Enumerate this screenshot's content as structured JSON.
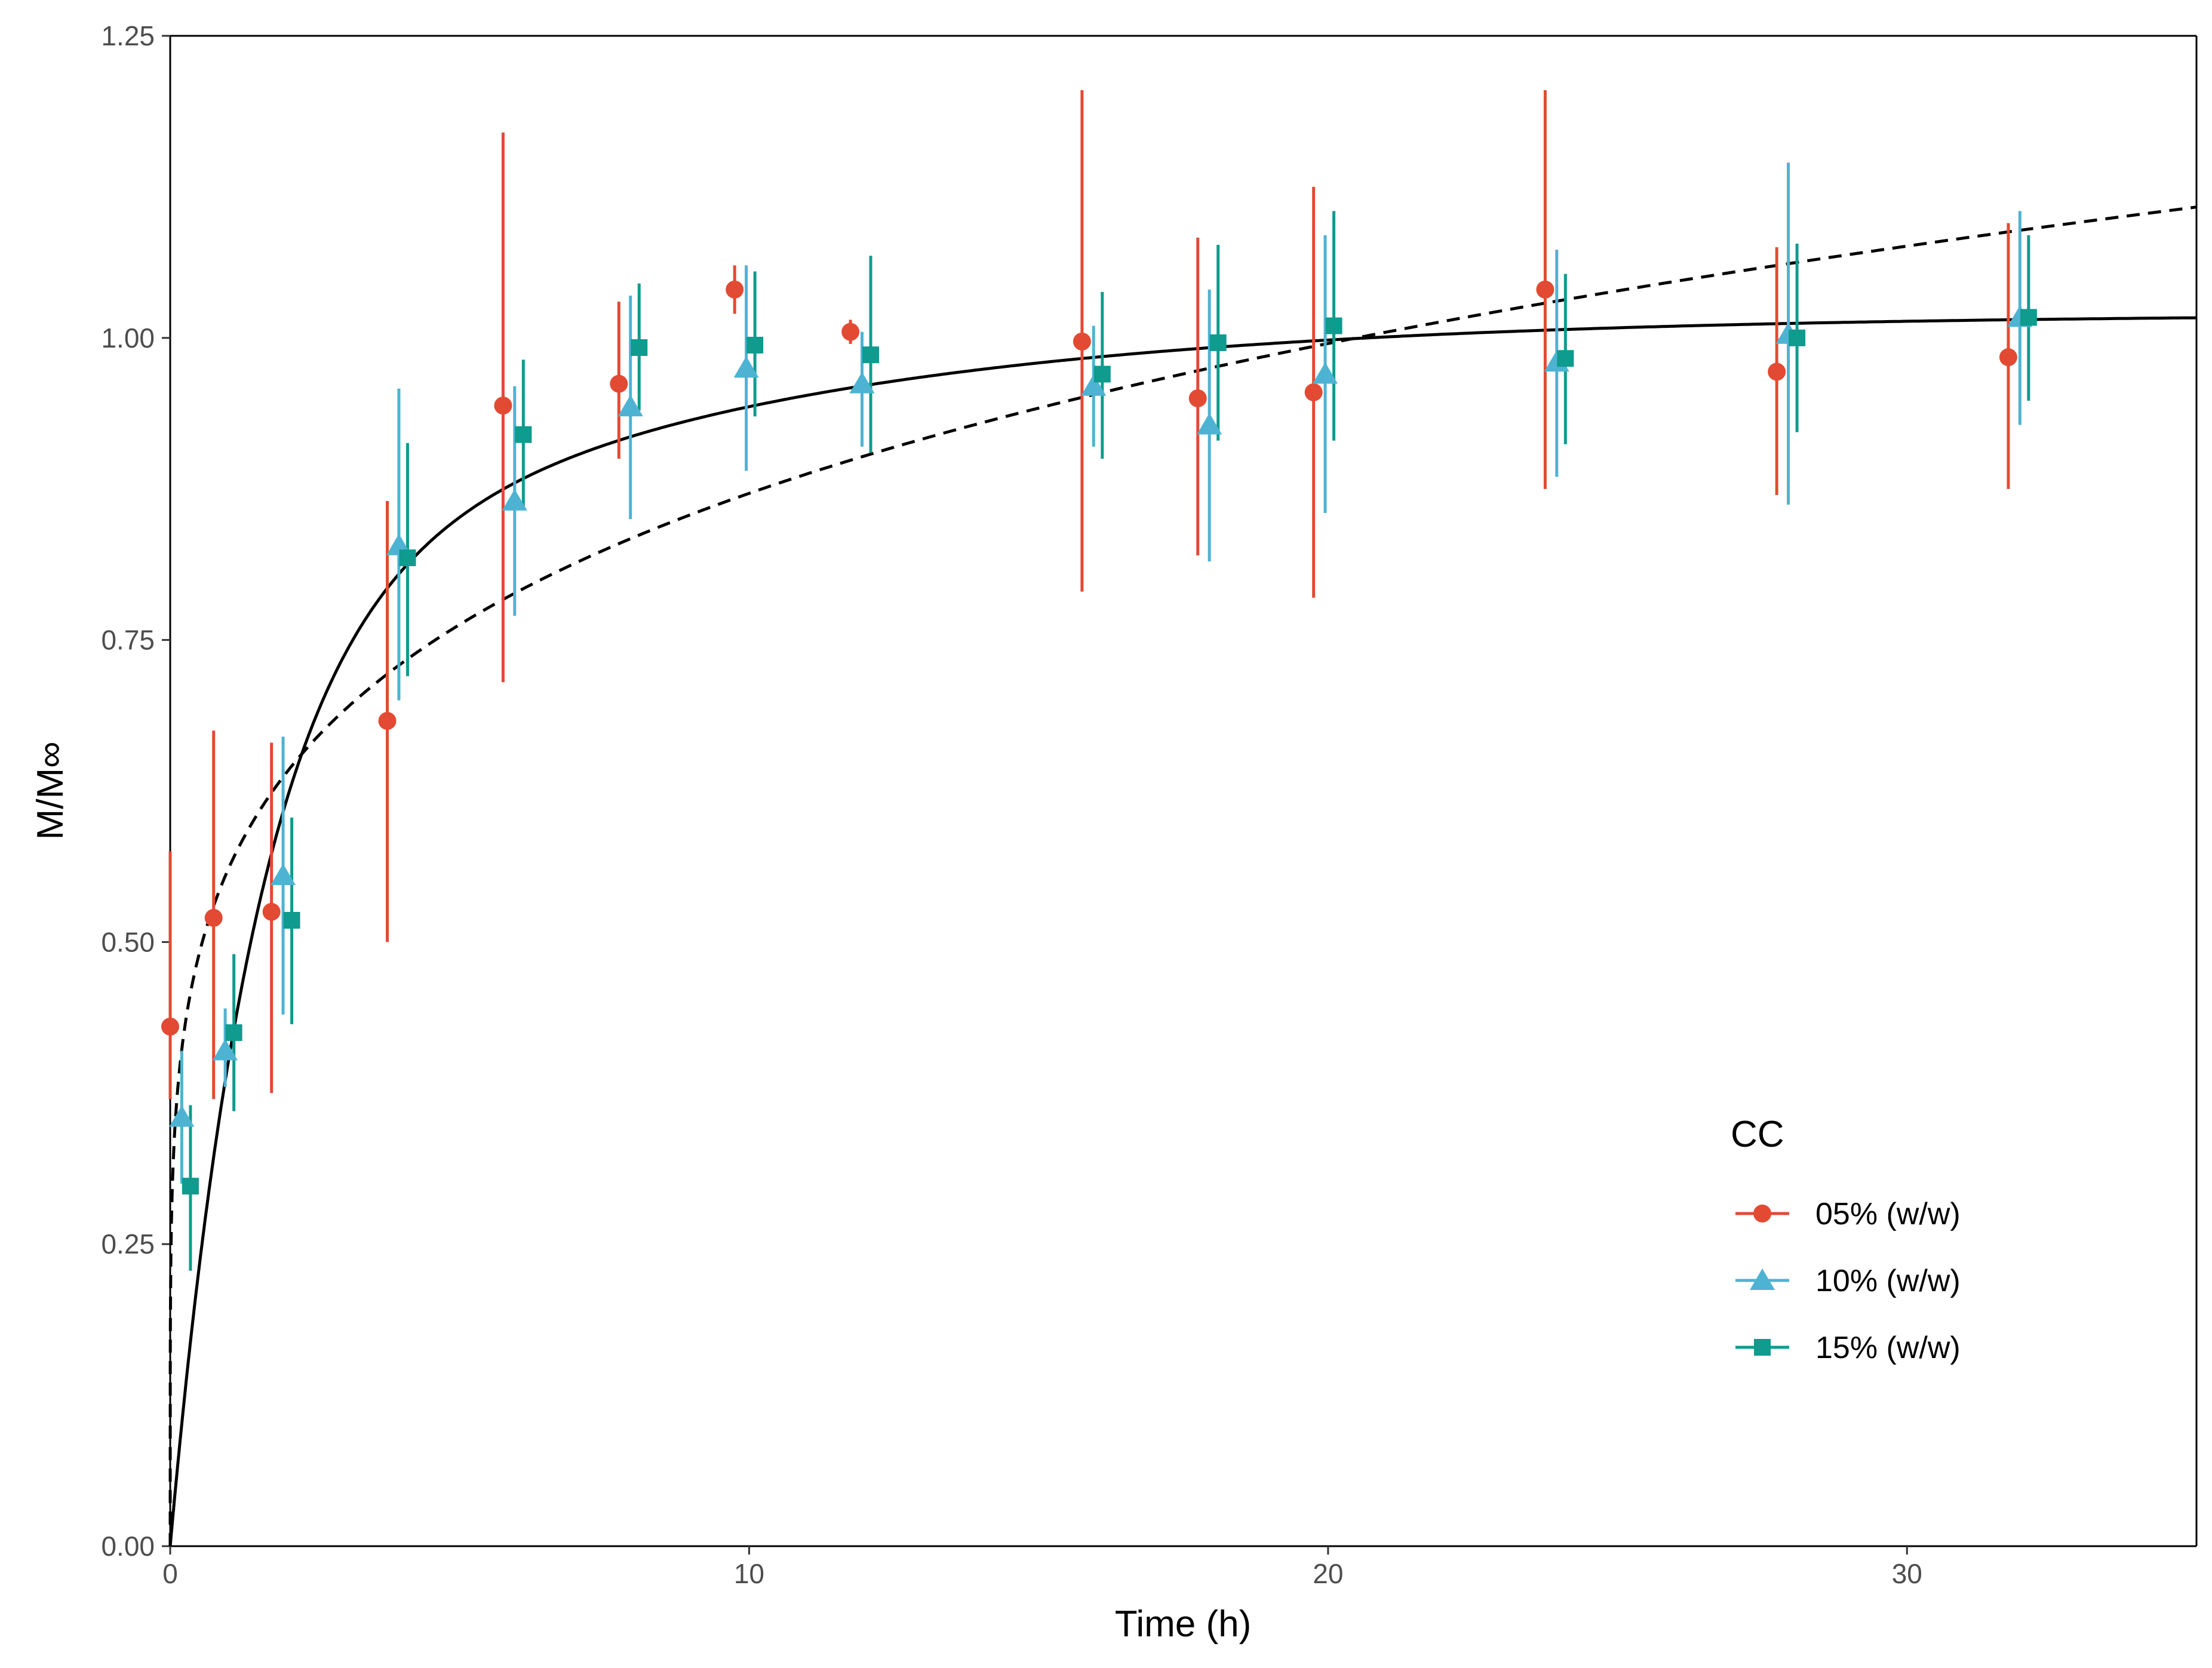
{
  "chart_data": {
    "type": "scatter",
    "xlabel": "Time (h)",
    "ylabel": "M/M∞",
    "xlim": [
      0,
      35
    ],
    "ylim": [
      0,
      1.25
    ],
    "xticks": [
      0,
      10,
      20,
      30
    ],
    "yticks": [
      0.0,
      0.25,
      0.5,
      0.75,
      1.0,
      1.25
    ],
    "xtick_labels": [
      "0",
      "10",
      "20",
      "30"
    ],
    "ytick_labels": [
      "0.00",
      "0.25",
      "0.50",
      "0.75",
      "1.00",
      "1.25"
    ],
    "grid": false,
    "legend": {
      "title": "CC",
      "position": "bottom-right"
    },
    "series": [
      {
        "name": "05% (w/w)",
        "color": "#E24A33",
        "marker": "circle",
        "x_offset": -0.25,
        "points": [
          {
            "x": 0.25,
            "y": 0.43,
            "lo": 0.37,
            "hi": 0.575
          },
          {
            "x": 1,
            "y": 0.52,
            "lo": 0.37,
            "hi": 0.675
          },
          {
            "x": 2,
            "y": 0.525,
            "lo": 0.375,
            "hi": 0.665
          },
          {
            "x": 4,
            "y": 0.683,
            "lo": 0.5,
            "hi": 0.865
          },
          {
            "x": 6,
            "y": 0.944,
            "lo": 0.715,
            "hi": 1.17
          },
          {
            "x": 8,
            "y": 0.962,
            "lo": 0.9,
            "hi": 1.03
          },
          {
            "x": 10,
            "y": 1.04,
            "lo": 1.02,
            "hi": 1.06
          },
          {
            "x": 12,
            "y": 1.005,
            "lo": 0.995,
            "hi": 1.015
          },
          {
            "x": 16,
            "y": 0.997,
            "lo": 0.79,
            "hi": 1.205
          },
          {
            "x": 18,
            "y": 0.95,
            "lo": 0.82,
            "hi": 1.083
          },
          {
            "x": 20,
            "y": 0.955,
            "lo": 0.785,
            "hi": 1.125
          },
          {
            "x": 24,
            "y": 1.04,
            "lo": 0.875,
            "hi": 1.205
          },
          {
            "x": 28,
            "y": 0.972,
            "lo": 0.87,
            "hi": 1.075
          },
          {
            "x": 32,
            "y": 0.984,
            "lo": 0.875,
            "hi": 1.095
          }
        ]
      },
      {
        "name": "10% (w/w)",
        "color": "#4EB3D3",
        "marker": "triangle",
        "x_offset": -0.05,
        "points": [
          {
            "x": 0.25,
            "y": 0.355,
            "lo": 0.3,
            "hi": 0.41
          },
          {
            "x": 1,
            "y": 0.41,
            "lo": 0.38,
            "hi": 0.445
          },
          {
            "x": 2,
            "y": 0.555,
            "lo": 0.44,
            "hi": 0.67
          },
          {
            "x": 4,
            "y": 0.828,
            "lo": 0.7,
            "hi": 0.958
          },
          {
            "x": 6,
            "y": 0.865,
            "lo": 0.77,
            "hi": 0.96
          },
          {
            "x": 8,
            "y": 0.943,
            "lo": 0.85,
            "hi": 1.035
          },
          {
            "x": 10,
            "y": 0.975,
            "lo": 0.89,
            "hi": 1.06
          },
          {
            "x": 12,
            "y": 0.962,
            "lo": 0.91,
            "hi": 1.005
          },
          {
            "x": 16,
            "y": 0.96,
            "lo": 0.91,
            "hi": 1.01
          },
          {
            "x": 18,
            "y": 0.928,
            "lo": 0.815,
            "hi": 1.04
          },
          {
            "x": 20,
            "y": 0.97,
            "lo": 0.855,
            "hi": 1.085
          },
          {
            "x": 24,
            "y": 0.98,
            "lo": 0.885,
            "hi": 1.073
          },
          {
            "x": 28,
            "y": 1.003,
            "lo": 0.862,
            "hi": 1.145
          },
          {
            "x": 32,
            "y": 1.017,
            "lo": 0.928,
            "hi": 1.105
          }
        ]
      },
      {
        "name": "15% (w/w)",
        "color": "#0F9B8E",
        "marker": "square",
        "x_offset": 0.1,
        "points": [
          {
            "x": 0.25,
            "y": 0.298,
            "lo": 0.228,
            "hi": 0.365
          },
          {
            "x": 1,
            "y": 0.425,
            "lo": 0.36,
            "hi": 0.49
          },
          {
            "x": 2,
            "y": 0.518,
            "lo": 0.432,
            "hi": 0.603
          },
          {
            "x": 4,
            "y": 0.818,
            "lo": 0.72,
            "hi": 0.913
          },
          {
            "x": 6,
            "y": 0.92,
            "lo": 0.86,
            "hi": 0.982
          },
          {
            "x": 8,
            "y": 0.992,
            "lo": 0.94,
            "hi": 1.045
          },
          {
            "x": 10,
            "y": 0.994,
            "lo": 0.935,
            "hi": 1.055
          },
          {
            "x": 12,
            "y": 0.986,
            "lo": 0.905,
            "hi": 1.068
          },
          {
            "x": 16,
            "y": 0.97,
            "lo": 0.9,
            "hi": 1.038
          },
          {
            "x": 18,
            "y": 0.996,
            "lo": 0.915,
            "hi": 1.077
          },
          {
            "x": 20,
            "y": 1.01,
            "lo": 0.915,
            "hi": 1.105
          },
          {
            "x": 24,
            "y": 0.983,
            "lo": 0.912,
            "hi": 1.053
          },
          {
            "x": 28,
            "y": 1.0,
            "lo": 0.922,
            "hi": 1.078
          },
          {
            "x": 32,
            "y": 1.017,
            "lo": 0.948,
            "hi": 1.085
          }
        ]
      }
    ],
    "fit_curves": [
      {
        "name": "solid-fit",
        "style": "solid",
        "model": "asymptotic",
        "a": 1.02,
        "b": 0.26,
        "c": 0.67
      },
      {
        "name": "dashed-fit",
        "style": "dashed",
        "model": "power",
        "k": 0.56,
        "n": 0.192
      }
    ]
  }
}
